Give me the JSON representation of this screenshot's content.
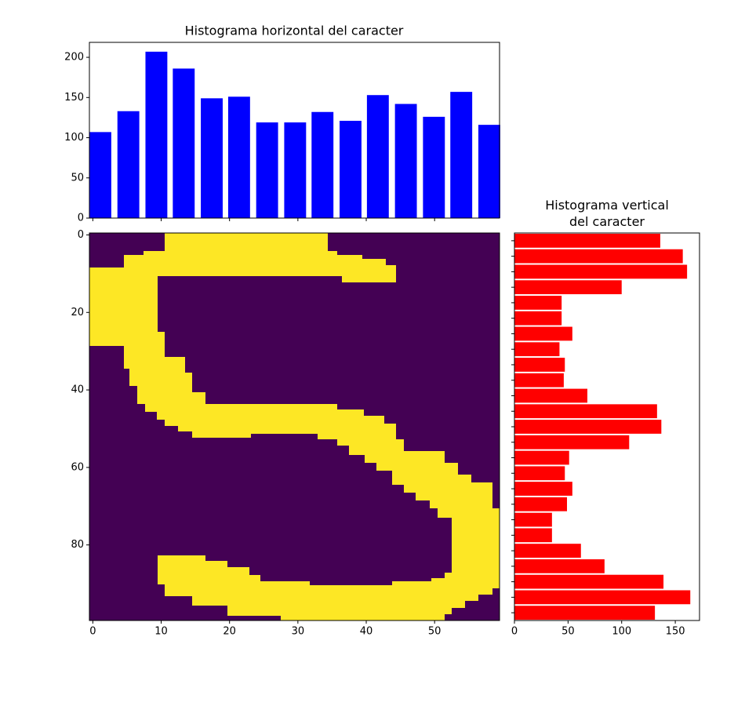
{
  "chart_data": [
    {
      "type": "bar",
      "title": "Histograma horizontal del caracter",
      "x": [
        1.1,
        5.2,
        9.3,
        13.3,
        17.4,
        21.4,
        25.5,
        29.6,
        33.6,
        37.7,
        41.7,
        45.8,
        49.9,
        53.9,
        58.0
      ],
      "values": [
        107,
        133,
        207,
        186,
        149,
        151,
        119,
        119,
        132,
        121,
        153,
        142,
        126,
        157,
        116
      ],
      "color": "#0000ff",
      "xlim": [
        -0.5,
        59.5
      ],
      "ylim": [
        0,
        218.6
      ],
      "yticks": [
        0,
        50,
        100,
        150,
        200
      ]
    },
    {
      "type": "image",
      "colors": [
        "#440154",
        "#fde725"
      ],
      "xlim": [
        -0.5,
        59.5
      ],
      "ylim": [
        99.5,
        -0.5
      ],
      "xticks": [
        0,
        10,
        20,
        30,
        40,
        50
      ],
      "yticks": [
        0,
        20,
        40,
        60,
        80
      ]
    },
    {
      "type": "barh",
      "title": "Histograma vertical\ndel caracter",
      "y": [
        1.5,
        5.5,
        9.5,
        13.5,
        17.5,
        21.5,
        25.5,
        29.5,
        33.5,
        37.5,
        41.5,
        45.5,
        49.5,
        53.5,
        57.5,
        61.5,
        65.5,
        69.5,
        73.5,
        77.5,
        81.5,
        85.5,
        89.5,
        93.5,
        97.5
      ],
      "values": [
        136,
        157,
        161,
        100,
        44,
        44,
        54,
        42,
        47,
        46,
        68,
        133,
        137,
        107,
        51,
        47,
        54,
        49,
        35,
        35,
        62,
        84,
        139,
        164,
        131
      ],
      "color": "#ff0000",
      "xlim": [
        0,
        172.6
      ],
      "xticks": [
        0,
        50,
        100,
        150
      ],
      "ylim": [
        99.5,
        -0.5
      ]
    }
  ]
}
